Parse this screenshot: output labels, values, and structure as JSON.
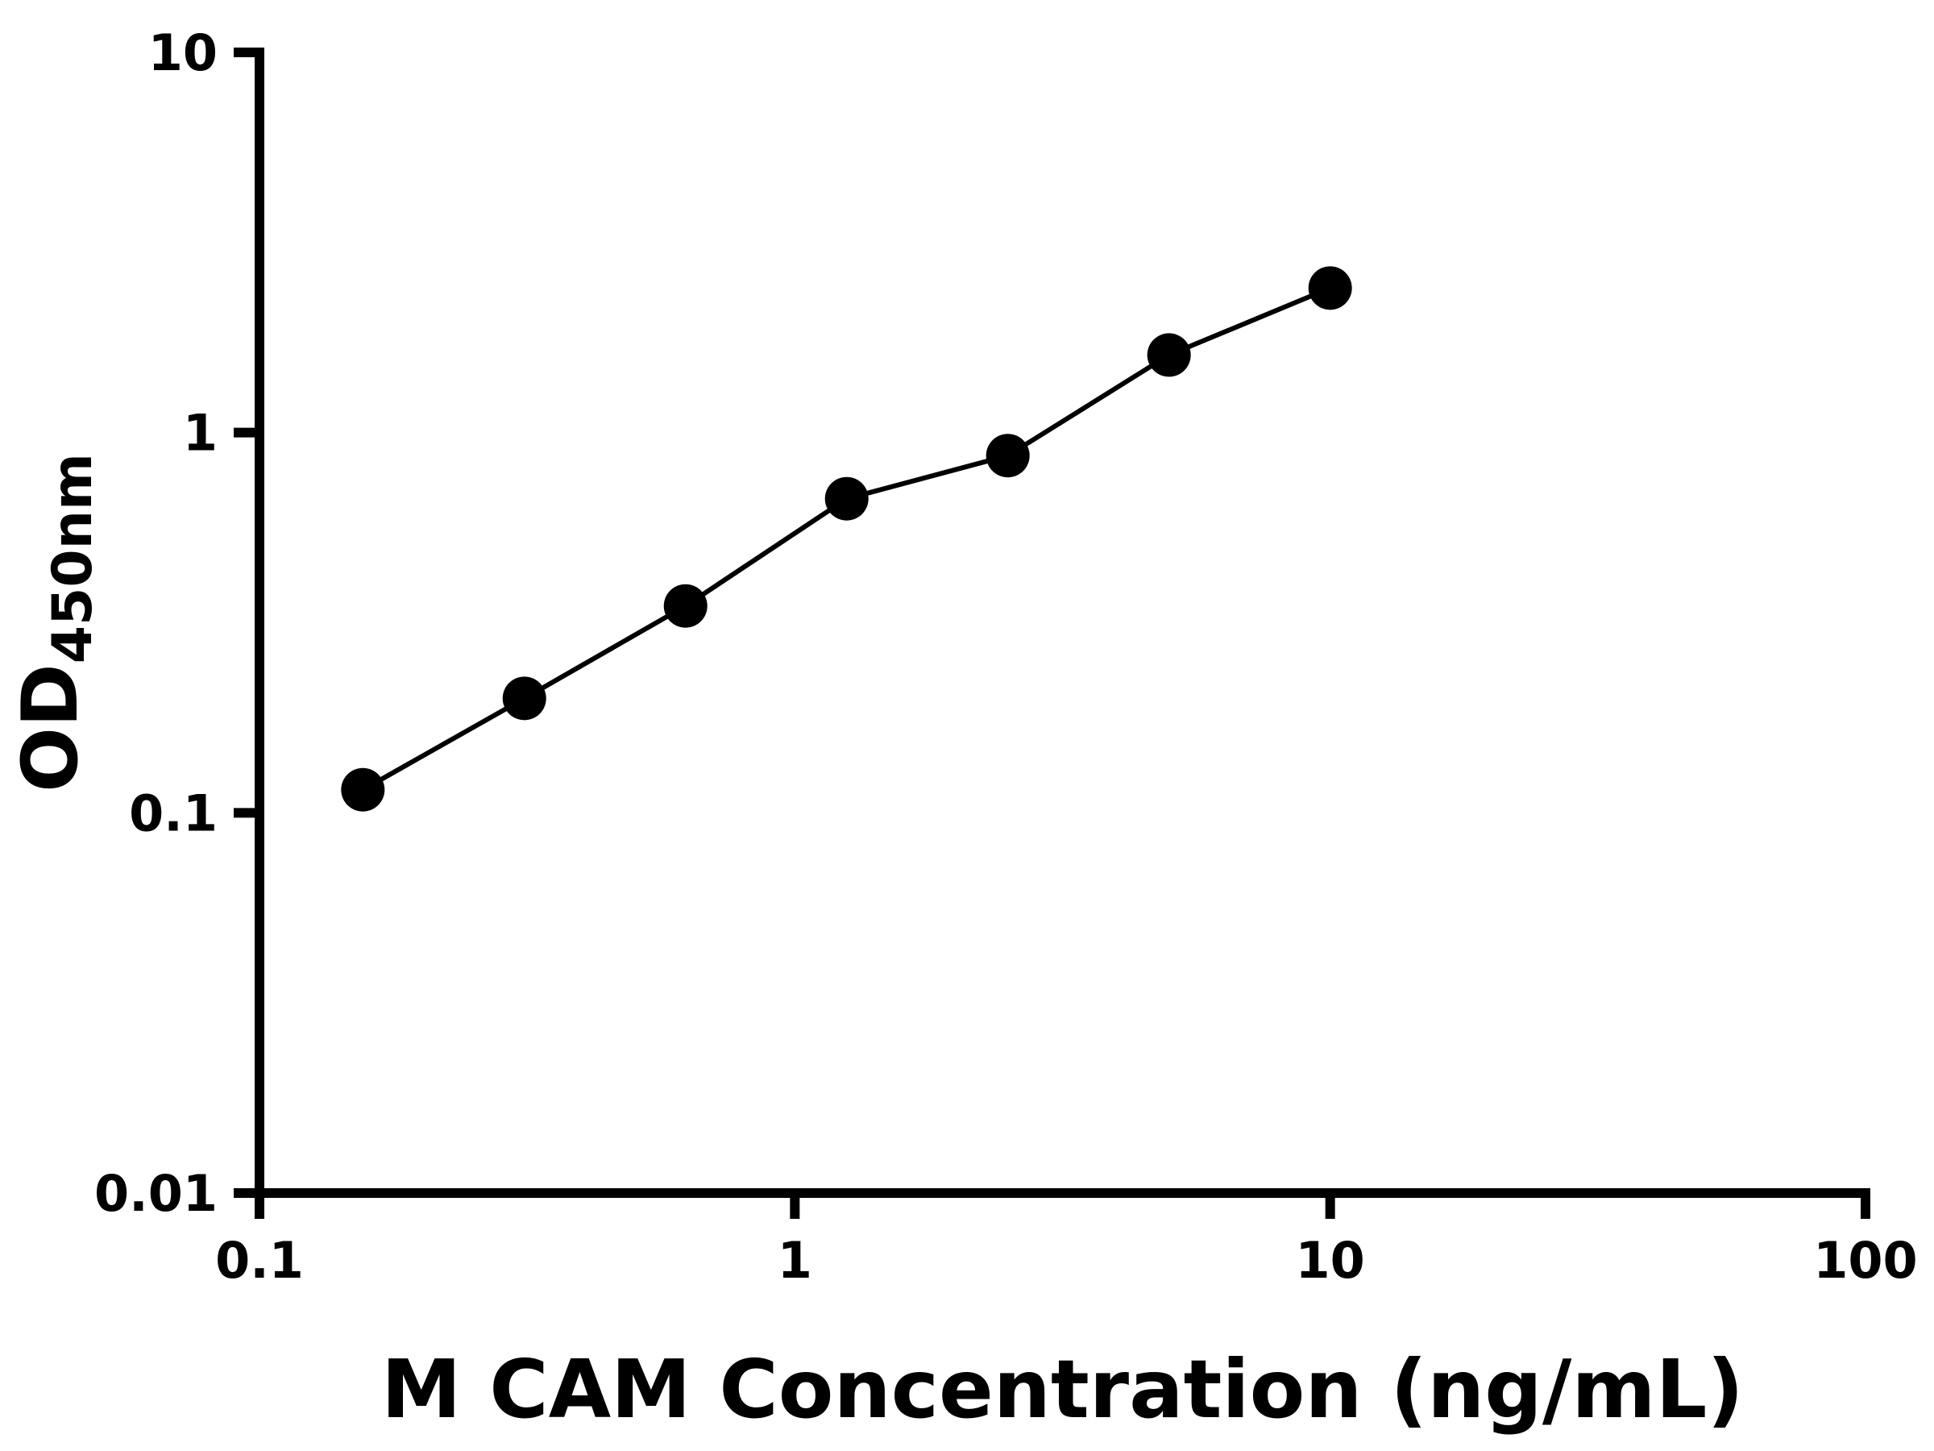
{
  "page": {
    "background": "#ffffff"
  },
  "chart_data": {
    "type": "scatter",
    "subtype": "standard-curve-with-fit-line",
    "title": "",
    "xlabel": "M CAM Concentration (ng/mL)",
    "ylabel_main": "OD",
    "ylabel_sub": "450nm",
    "x_scale": "log",
    "y_scale": "log",
    "xlim": [
      0.1,
      100
    ],
    "ylim": [
      0.01,
      10
    ],
    "grid": false,
    "legend": "none",
    "axis_color": "#000000",
    "line_color": "#000000",
    "marker_color": "#000000",
    "marker_shape": "filled-circle",
    "x": [
      0.156,
      0.3125,
      0.625,
      1.25,
      2.5,
      5,
      10
    ],
    "y": [
      0.115,
      0.2,
      0.35,
      0.67,
      0.87,
      1.6,
      2.4
    ],
    "x_ticks": [
      {
        "v": 0.1,
        "label": "0.1"
      },
      {
        "v": 1,
        "label": "1"
      },
      {
        "v": 10,
        "label": "10"
      },
      {
        "v": 100,
        "label": "100"
      }
    ],
    "y_ticks": [
      {
        "v": 0.01,
        "label": "0.01"
      },
      {
        "v": 0.1,
        "label": "0.1"
      },
      {
        "v": 1,
        "label": "1"
      },
      {
        "v": 10,
        "label": "10"
      }
    ]
  }
}
